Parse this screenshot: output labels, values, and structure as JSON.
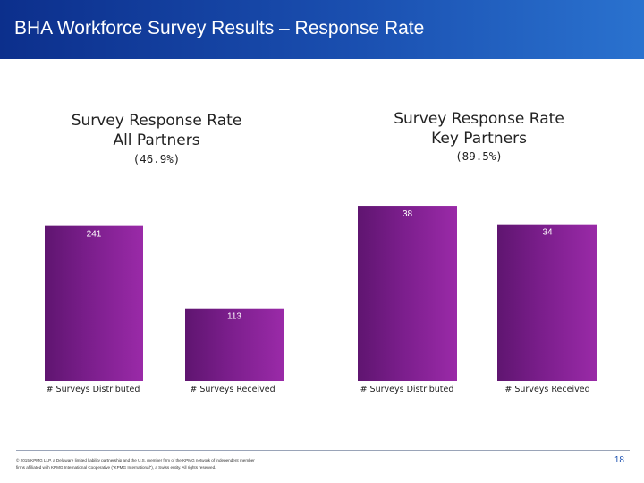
{
  "header": {
    "title": "BHA Workforce Survey Results – Response Rate"
  },
  "colors": {
    "bar": "#7b1e8c",
    "header": "#1a4fb0"
  },
  "chart_data": [
    {
      "type": "bar",
      "title_line1": "Survey Response Rate",
      "title_line2": "All Partners",
      "subtitle": "(46.9%)",
      "categories": [
        "# Surveys Distributed",
        "# Surveys Received"
      ],
      "values": [
        241,
        113
      ],
      "ylim": [
        0,
        285
      ]
    },
    {
      "type": "bar",
      "title_line1": "Survey Response Rate",
      "title_line2": "Key Partners",
      "subtitle": "(89.5%)",
      "categories": [
        "# Surveys Distributed",
        "# Surveys Received"
      ],
      "values": [
        38,
        34
      ],
      "ylim": [
        0,
        41.5
      ]
    }
  ],
  "footer": {
    "line1": "© 2015 KPMG LLP, a Delaware limited liability partnership and the U.S. member firm of the KPMG network of independent member",
    "line2": "firms affiliated with KPMG International Cooperative (\"KPMG International\"), a Swiss entity. All rights reserved.",
    "page": "18"
  }
}
